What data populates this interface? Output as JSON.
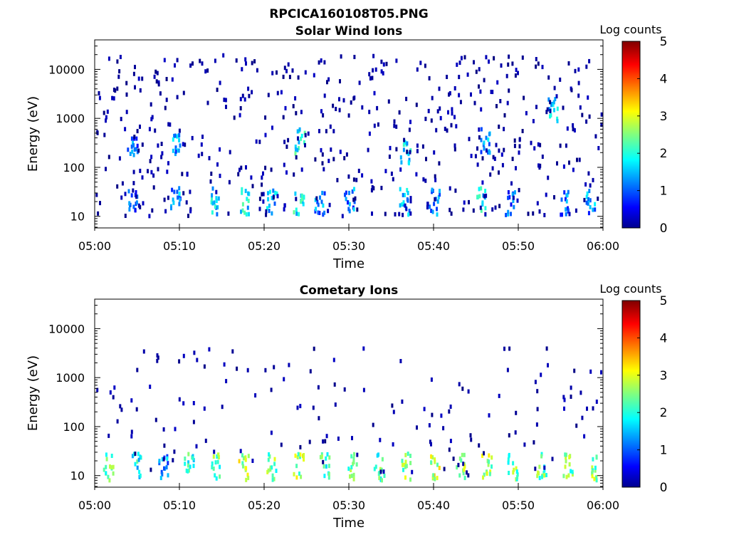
{
  "figure_title": "RPCICA160108T05.PNG",
  "colorbar_label": "Log counts",
  "chart_data": [
    {
      "type": "heatmap",
      "title": "Solar Wind Ions",
      "xlabel": "Time",
      "ylabel": "Energy (eV)",
      "x_ticks": [
        "05:00",
        "05:10",
        "05:20",
        "05:30",
        "05:40",
        "05:50",
        "06:00"
      ],
      "x_range_minutes": [
        0,
        60
      ],
      "y_ticks": [
        10,
        100,
        1000,
        10000
      ],
      "y_range_ev": [
        5.8,
        40000
      ],
      "y_scale": "log",
      "colorbar": {
        "label": "Log counts",
        "range": [
          0,
          5
        ],
        "ticks": [
          0,
          1,
          2,
          3,
          4,
          5
        ],
        "colormap": "jet"
      },
      "bursts": [
        {
          "t": 4.3,
          "e": 20,
          "z": 1.0
        },
        {
          "t": 4.4,
          "e": 300,
          "z": 1.2
        },
        {
          "t": 9.5,
          "e": 20,
          "z": 1.3
        },
        {
          "t": 9.6,
          "e": 350,
          "z": 1.3
        },
        {
          "t": 14.0,
          "e": 20,
          "z": 1.6
        },
        {
          "t": 17.5,
          "e": 20,
          "z": 1.8
        },
        {
          "t": 20.8,
          "e": 20,
          "z": 1.6
        },
        {
          "t": 24.0,
          "e": 20,
          "z": 1.8
        },
        {
          "t": 24.1,
          "e": 350,
          "z": 2.0
        },
        {
          "t": 26.5,
          "e": 20,
          "z": 1.2
        },
        {
          "t": 30.0,
          "e": 20,
          "z": 1.2
        },
        {
          "t": 36.5,
          "e": 20,
          "z": 1.7
        },
        {
          "t": 36.6,
          "e": 200,
          "z": 1.7
        },
        {
          "t": 40.0,
          "e": 20,
          "z": 1.2
        },
        {
          "t": 45.5,
          "e": 20,
          "z": 1.7
        },
        {
          "t": 46.0,
          "e": 350,
          "z": 1.3
        },
        {
          "t": 49.0,
          "e": 20,
          "z": 1.0
        },
        {
          "t": 54.0,
          "e": 1500,
          "z": 1.9
        },
        {
          "t": 55.5,
          "e": 20,
          "z": 1.2
        },
        {
          "t": 58.5,
          "e": 20,
          "z": 1.3
        }
      ]
    },
    {
      "type": "heatmap",
      "title": "Cometary Ions",
      "xlabel": "Time",
      "ylabel": "Energy (eV)",
      "x_ticks": [
        "05:00",
        "05:10",
        "05:20",
        "05:30",
        "05:40",
        "05:50",
        "06:00"
      ],
      "x_range_minutes": [
        0,
        60
      ],
      "y_ticks": [
        10,
        100,
        1000,
        10000
      ],
      "y_range_ev": [
        5.8,
        40000
      ],
      "y_scale": "log",
      "colorbar": {
        "label": "Log counts",
        "range": [
          0,
          5
        ],
        "ticks": [
          0,
          1,
          2,
          3,
          4,
          5
        ],
        "colormap": "jet"
      },
      "bursts": [
        {
          "t": 1.5,
          "e": 15,
          "z": 2.2
        },
        {
          "t": 4.8,
          "e": 15,
          "z": 1.9
        },
        {
          "t": 8.0,
          "e": 15,
          "z": 1.4
        },
        {
          "t": 11.0,
          "e": 15,
          "z": 2.1
        },
        {
          "t": 14.2,
          "e": 15,
          "z": 2.3
        },
        {
          "t": 17.5,
          "e": 15,
          "z": 2.8
        },
        {
          "t": 20.8,
          "e": 15,
          "z": 2.4
        },
        {
          "t": 24.0,
          "e": 15,
          "z": 2.7
        },
        {
          "t": 27.0,
          "e": 15,
          "z": 2.2
        },
        {
          "t": 30.3,
          "e": 15,
          "z": 2.4
        },
        {
          "t": 33.5,
          "e": 15,
          "z": 2.3
        },
        {
          "t": 36.7,
          "e": 15,
          "z": 2.5
        },
        {
          "t": 40.0,
          "e": 15,
          "z": 2.8
        },
        {
          "t": 43.2,
          "e": 15,
          "z": 2.5
        },
        {
          "t": 46.2,
          "e": 15,
          "z": 2.7
        },
        {
          "t": 49.3,
          "e": 15,
          "z": 2.4
        },
        {
          "t": 52.6,
          "e": 15,
          "z": 2.3
        },
        {
          "t": 55.8,
          "e": 15,
          "z": 2.4
        },
        {
          "t": 59.0,
          "e": 15,
          "z": 2.5
        }
      ]
    }
  ]
}
